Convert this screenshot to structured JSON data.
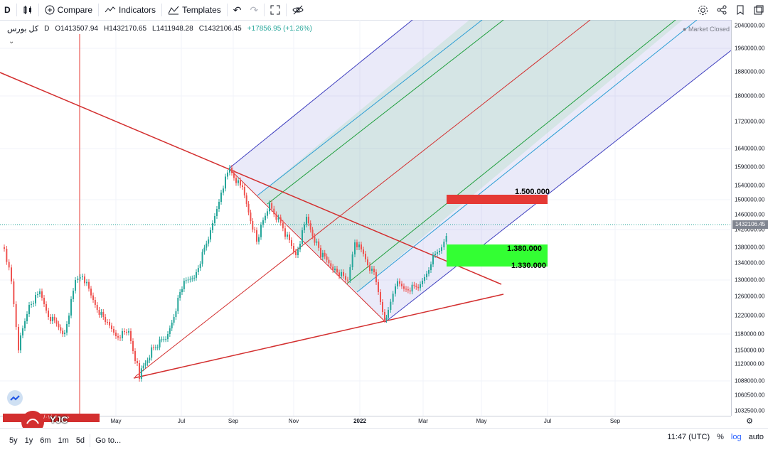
{
  "toolbar": {
    "interval": "D",
    "compare_label": "Compare",
    "indicators_label": "Indicators",
    "templates_label": "Templates"
  },
  "legend": {
    "symbol": "کل بورس",
    "interval": "D",
    "open": "O1413507.94",
    "high": "H1432170.65",
    "low": "L1411948.28",
    "close": "C1432106.45",
    "change": "+17856.95 (+1.26%)",
    "collapse_icon": "chevron-down-icon"
  },
  "market_status": "Market Closed",
  "price_axis": {
    "ticks": [
      "2040000.00",
      "1960000.00",
      "1880000.00",
      "1800000.00",
      "1720000.00",
      "1640000.00",
      "1590000.00",
      "1540000.00",
      "1500000.00",
      "1460000.00",
      "1420000.00",
      "1380000.00",
      "1340000.00",
      "1300000.00",
      "1260000.00",
      "1220000.00",
      "1180000.00",
      "1150000.00",
      "1120000.00",
      "1088000.00",
      "1060500.00",
      "1032500.00"
    ],
    "last_price": "1432106.45"
  },
  "time_axis": {
    "ticks": [
      "May",
      "Jul",
      "Sep",
      "Nov",
      "2022",
      "Mar",
      "May",
      "Jul",
      "Sep"
    ],
    "bold_tick": "2022"
  },
  "annotations": {
    "level_1500": "1.500.000",
    "level_1380": "1.380.000",
    "level_1330": "1.330.000",
    "red_label": "جمعه ۱۴۰۰/۰۱/۰۶",
    "watermark": "YJC"
  },
  "bottombar": {
    "ranges": [
      "5y",
      "1y",
      "6m",
      "1m",
      "5d"
    ],
    "goto_label": "Go to...",
    "clock": "11:47 (UTC)",
    "percent_label": "%",
    "log_label": "log",
    "auto_label": "auto"
  },
  "colors": {
    "up": "#26a69a",
    "down": "#ef5350",
    "trendline": "#d32f2f",
    "pitchfork_outer": "#3f3fbf",
    "pitchfork_inner": "#1e9e3c",
    "level_red": "#e53935",
    "level_green": "#33ff33"
  }
}
